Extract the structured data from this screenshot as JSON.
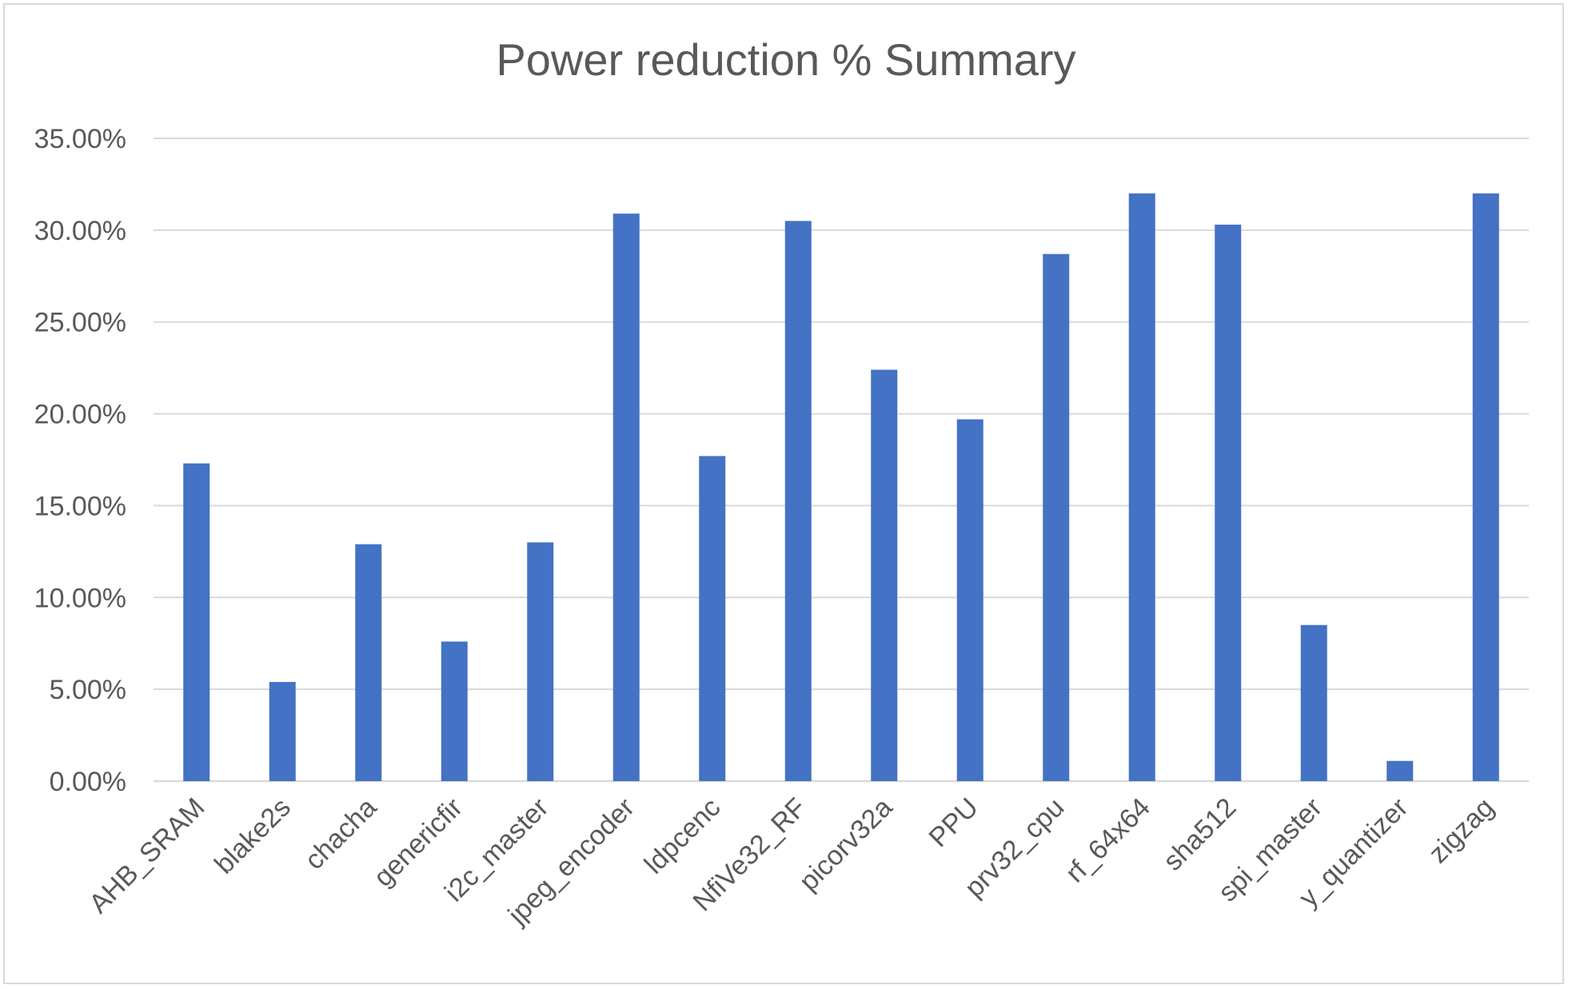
{
  "chart_data": {
    "type": "bar",
    "title": "Power reduction % Summary",
    "xlabel": "",
    "ylabel": "",
    "categories": [
      "AHB_SRAM",
      "blake2s",
      "chacha",
      "genericfir",
      "i2c_master",
      "jpeg_encoder",
      "ldpcenc",
      "NfiVe32_RF",
      "picorv32a",
      "PPU",
      "prv32_cpu",
      "rf_64x64",
      "sha512",
      "spi_master",
      "y_quantizer",
      "zigzag"
    ],
    "values": [
      17.3,
      5.4,
      12.9,
      7.6,
      13.0,
      30.9,
      17.7,
      30.5,
      22.4,
      19.7,
      28.7,
      32.0,
      30.3,
      8.5,
      1.1,
      32.0
    ],
    "ylim": [
      0,
      35
    ],
    "yticks": [
      "0.00%",
      "5.00%",
      "10.00%",
      "15.00%",
      "20.00%",
      "25.00%",
      "30.00%",
      "35.00%"
    ],
    "ytick_values": [
      0,
      5,
      10,
      15,
      20,
      25,
      30,
      35
    ],
    "grid": true,
    "legend": "none",
    "bar_color": "#4472c4",
    "grid_color": "#d9d9d9"
  }
}
